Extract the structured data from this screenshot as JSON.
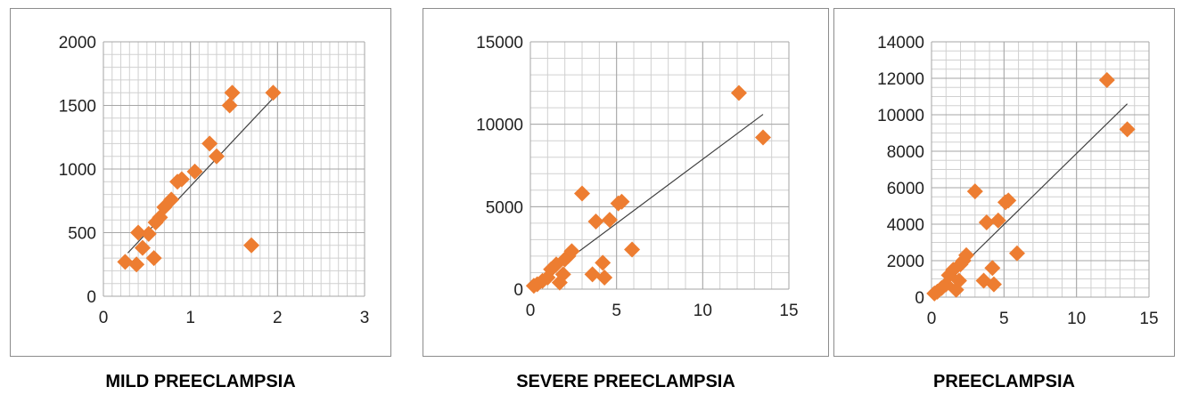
{
  "colors": {
    "marker": "#ED7D31",
    "trendline": "#404040",
    "grid": "#A6A6A6",
    "minor_grid": "#D0D0D0"
  },
  "chart_data": [
    {
      "type": "scatter",
      "title": "MILD PREECLAMPSIA",
      "xlabel": "",
      "ylabel": "",
      "xlim": [
        0,
        3
      ],
      "ylim": [
        0,
        2000
      ],
      "xticks": [
        0,
        1,
        2,
        3
      ],
      "yticks": [
        0,
        500,
        1000,
        1500,
        2000
      ],
      "x_minor": 0.1,
      "y_minor": 100,
      "trendline": {
        "type": "linear",
        "from": [
          0.28,
          340
        ],
        "to": [
          1.94,
          1550
        ]
      },
      "points": [
        [
          0.25,
          270
        ],
        [
          0.38,
          250
        ],
        [
          0.4,
          500
        ],
        [
          0.45,
          380
        ],
        [
          0.52,
          490
        ],
        [
          0.58,
          300
        ],
        [
          0.6,
          580
        ],
        [
          0.65,
          620
        ],
        [
          0.7,
          700
        ],
        [
          0.78,
          760
        ],
        [
          0.85,
          900
        ],
        [
          0.9,
          920
        ],
        [
          1.05,
          980
        ],
        [
          1.22,
          1200
        ],
        [
          1.3,
          1100
        ],
        [
          1.45,
          1500
        ],
        [
          1.48,
          1600
        ],
        [
          1.7,
          400
        ],
        [
          1.95,
          1600
        ]
      ]
    },
    {
      "type": "scatter",
      "title": "SEVERE PREECLAMPSIA",
      "xlabel": "",
      "ylabel": "",
      "xlim": [
        0,
        15
      ],
      "ylim": [
        0,
        15000
      ],
      "xticks": [
        0,
        5,
        10,
        15
      ],
      "yticks": [
        0,
        5000,
        10000,
        15000
      ],
      "x_minor": 1,
      "y_minor": 1000,
      "trendline": {
        "type": "linear",
        "from": [
          0.2,
          250
        ],
        "to": [
          13.5,
          10600
        ]
      },
      "points": [
        [
          0.2,
          200
        ],
        [
          0.4,
          300
        ],
        [
          0.7,
          500
        ],
        [
          1.0,
          700
        ],
        [
          1.2,
          1200
        ],
        [
          1.5,
          1500
        ],
        [
          1.7,
          400
        ],
        [
          1.9,
          900
        ],
        [
          2.0,
          1800
        ],
        [
          2.2,
          2000
        ],
        [
          2.4,
          2300
        ],
        [
          3.0,
          5800
        ],
        [
          3.6,
          900
        ],
        [
          3.8,
          4100
        ],
        [
          4.2,
          1600
        ],
        [
          4.3,
          700
        ],
        [
          4.6,
          4200
        ],
        [
          5.1,
          5200
        ],
        [
          5.3,
          5300
        ],
        [
          5.9,
          2400
        ],
        [
          12.1,
          11900
        ],
        [
          13.5,
          9200
        ]
      ]
    },
    {
      "type": "scatter",
      "title": "PREECLAMPSIA",
      "xlabel": "",
      "ylabel": "",
      "xlim": [
        0,
        15
      ],
      "ylim": [
        0,
        14000
      ],
      "xticks": [
        0,
        5,
        10,
        15
      ],
      "yticks": [
        0,
        2000,
        4000,
        6000,
        8000,
        10000,
        12000,
        14000
      ],
      "x_minor": 1,
      "y_minor": 500,
      "trendline": {
        "type": "linear",
        "from": [
          0.2,
          250
        ],
        "to": [
          13.5,
          10600
        ]
      },
      "points": [
        [
          0.2,
          200
        ],
        [
          0.4,
          300
        ],
        [
          0.7,
          500
        ],
        [
          1.0,
          700
        ],
        [
          1.2,
          1200
        ],
        [
          1.5,
          1500
        ],
        [
          1.7,
          400
        ],
        [
          1.9,
          900
        ],
        [
          2.0,
          1800
        ],
        [
          2.2,
          2000
        ],
        [
          2.4,
          2300
        ],
        [
          3.0,
          5800
        ],
        [
          3.6,
          900
        ],
        [
          3.8,
          4100
        ],
        [
          4.2,
          1600
        ],
        [
          4.3,
          700
        ],
        [
          4.6,
          4200
        ],
        [
          5.1,
          5200
        ],
        [
          5.3,
          5300
        ],
        [
          5.9,
          2400
        ],
        [
          12.1,
          11900
        ],
        [
          13.5,
          9200
        ]
      ]
    }
  ]
}
